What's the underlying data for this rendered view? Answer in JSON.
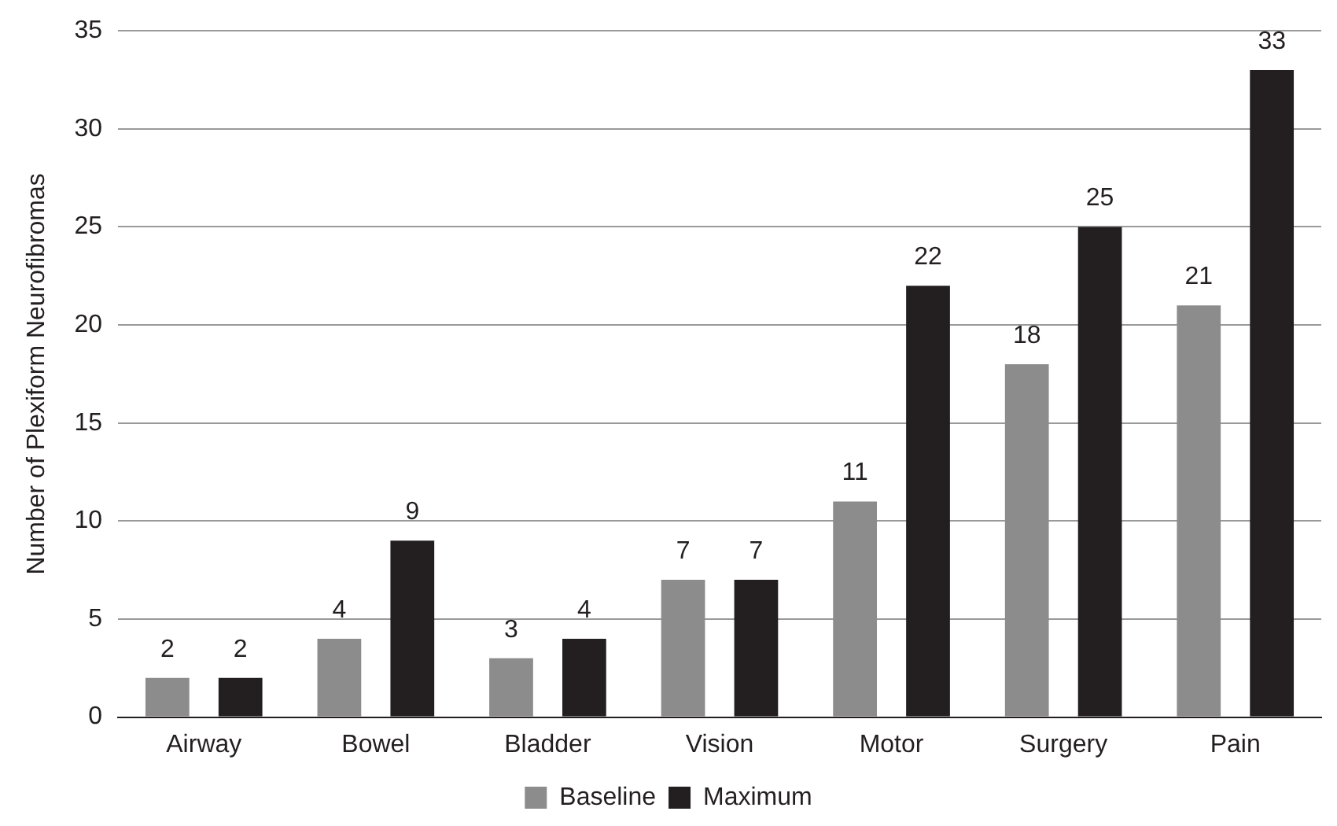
{
  "chart_data": {
    "type": "bar",
    "ylabel": "Number of Plexiform Neurofibromas",
    "categories": [
      "Airway",
      "Bowel",
      "Bladder",
      "Vision",
      "Motor",
      "Surgery",
      "Pain"
    ],
    "series": [
      {
        "name": "Baseline",
        "color": "#8c8c8c",
        "values": [
          2,
          4,
          3,
          7,
          11,
          18,
          21
        ]
      },
      {
        "name": "Maximum",
        "color": "#231f20",
        "values": [
          2,
          9,
          4,
          7,
          22,
          25,
          33
        ]
      }
    ],
    "ylim": [
      0,
      35
    ],
    "yticks": [
      0,
      5,
      10,
      15,
      20,
      25,
      30,
      35
    ],
    "grid": "y",
    "legend": "bottom",
    "data_labels": true
  }
}
